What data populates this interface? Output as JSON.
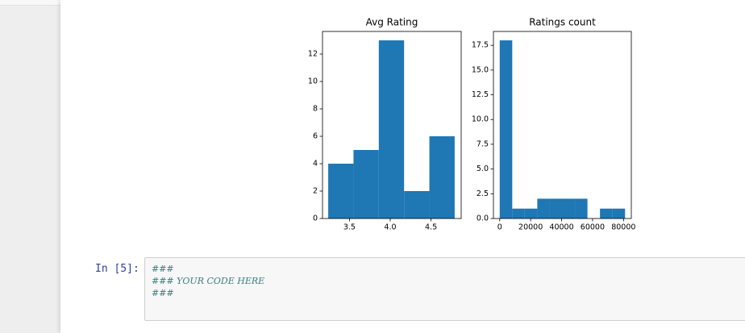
{
  "chart_data": [
    {
      "type": "histogram",
      "title": "Avg Rating",
      "color": "#1f77b4",
      "bins": [
        3.24,
        3.55,
        3.86,
        4.17,
        4.48,
        4.79
      ],
      "values": [
        4,
        5,
        13,
        2,
        6
      ],
      "xlim": [
        3.17,
        4.87
      ],
      "ylim": [
        0,
        13.65
      ],
      "xticks": [
        3.5,
        {
          "value": 4,
          "label": "4.0"
        },
        4.5
      ],
      "yticks": [
        0,
        2,
        4,
        6,
        8,
        10,
        12
      ]
    },
    {
      "type": "histogram",
      "title": "Ratings count",
      "color": "#1f77b4",
      "bins": [
        0,
        8100,
        16200,
        24300,
        32400,
        40500,
        48600,
        56700,
        64800,
        72900,
        81000
      ],
      "values": [
        18,
        1,
        1,
        2,
        2,
        2,
        2,
        0,
        1,
        1
      ],
      "xlim": [
        -4050,
        85050
      ],
      "ylim": [
        0,
        18.9
      ],
      "xticks": [
        0,
        20000,
        40000,
        60000,
        80000
      ],
      "yticks": [
        {
          "value": 0,
          "label": "0.0"
        },
        2.5,
        {
          "value": 5,
          "label": "5.0"
        },
        7.5,
        {
          "value": 10,
          "label": "10.0"
        },
        12.5,
        {
          "value": 15,
          "label": "15.0"
        },
        17.5
      ]
    }
  ],
  "cell": {
    "prompt": "In [5]:",
    "code": [
      "###",
      "### YOUR CODE HERE",
      "###"
    ]
  }
}
